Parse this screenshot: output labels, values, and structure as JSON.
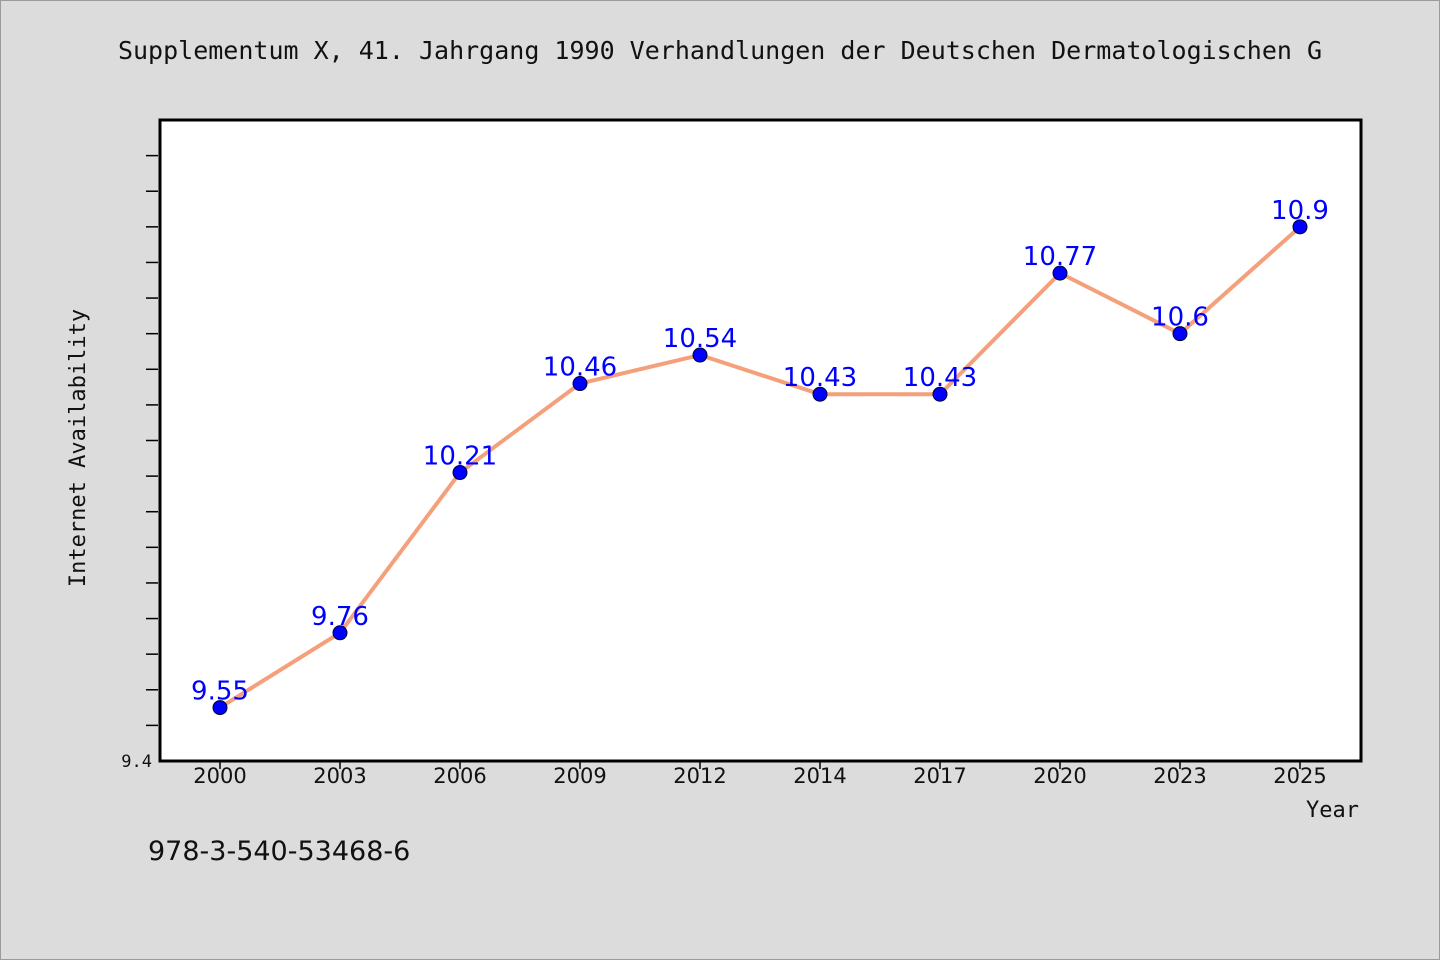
{
  "chart_data": {
    "type": "line",
    "title": "Supplementum X, 41. Jahrgang 1990 Verhandlungen der Deutschen Dermatologischen G",
    "xlabel": "Year",
    "ylabel": "Internet Availability",
    "categories": [
      "2000",
      "2003",
      "2006",
      "2009",
      "2012",
      "2014",
      "2017",
      "2020",
      "2023",
      "2025"
    ],
    "series": [
      {
        "values": [
          9.55,
          9.76,
          10.21,
          10.46,
          10.54,
          10.43,
          10.43,
          10.77,
          10.6,
          10.9
        ],
        "data_labels": [
          "9.55",
          "9.76",
          "10.21",
          "10.46",
          "10.54",
          "10.43",
          "10.43",
          "10.77",
          "10.6",
          "10.9"
        ]
      }
    ],
    "y_tick_labels": [
      "9.4"
    ],
    "ylim": [
      9.4,
      11.2
    ],
    "grid": false,
    "legend": "none",
    "colors": {
      "line": "#f4a07a",
      "marker": "#0000ff",
      "data_label": "#0000ff",
      "axis": "#000000",
      "plot_background": "#ffffff",
      "page_background": "#dcdcdc"
    }
  },
  "footer": {
    "isbn": "978-3-540-53468-6"
  }
}
